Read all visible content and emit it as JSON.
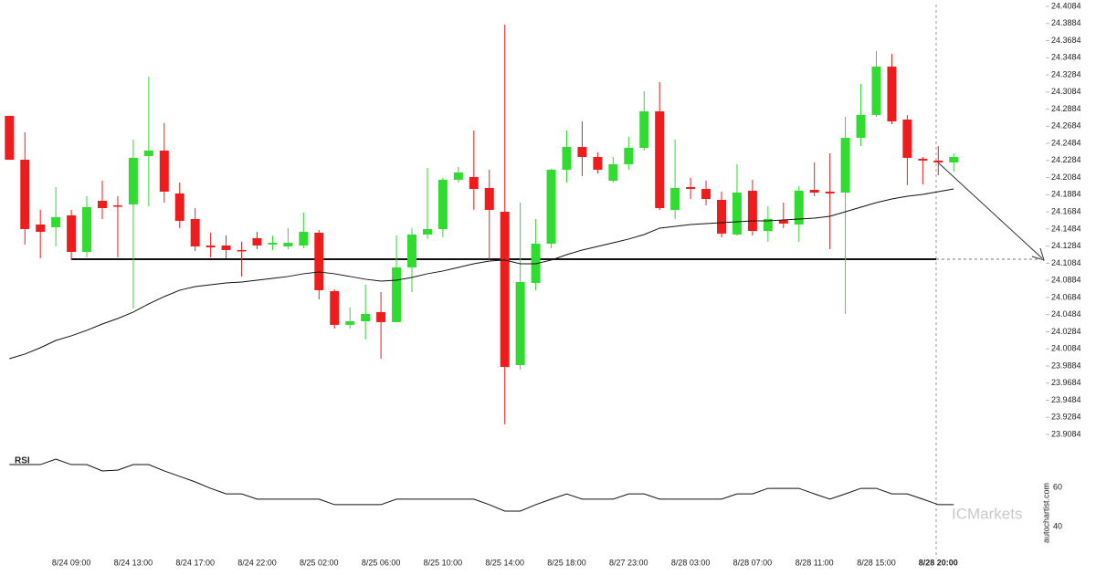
{
  "chart_data": {
    "type": "candlestick",
    "categories": [
      null,
      null,
      null,
      null,
      "8/24 09:00",
      null,
      null,
      null,
      "8/24 13:00",
      null,
      null,
      null,
      "8/24 17:00",
      null,
      null,
      null,
      "8/24 22:00",
      null,
      null,
      null,
      "8/25 02:00",
      null,
      null,
      null,
      "8/25 06:00",
      null,
      null,
      null,
      "8/25 10:00",
      null,
      null,
      null,
      "8/25 14:00",
      null,
      null,
      null,
      "8/25 18:00",
      null,
      null,
      null,
      "8/27 23:00",
      null,
      null,
      null,
      "8/28 03:00",
      null,
      null,
      null,
      "8/28 07:00",
      null,
      null,
      null,
      "8/28 11:00",
      null,
      null,
      null,
      "8/28 15:00",
      null,
      null,
      null,
      "8/28 20:00",
      null
    ],
    "open": [
      24.2805,
      24.2293,
      24.1536,
      24.1504,
      24.1643,
      24.1216,
      24.1813,
      24.176,
      24.1771,
      24.2336,
      24.24,
      24.1899,
      24.16,
      24.1291,
      24.1291,
      24.1238,
      24.1376,
      24.1302,
      24.128,
      24.1291,
      24.144,
      24.0758,
      24.0364,
      24.0406,
      24.0513,
      24.0396,
      24.1035,
      24.1419,
      24.1483,
      24.2059,
      24.2091,
      24.1963,
      24.1685,
      23.9894,
      24.0854,
      24.1312,
      24.2176,
      24.2442,
      24.2325,
      24.2048,
      24.224,
      24.2432,
      24.2858,
      24.1707,
      24.1973,
      24.1952,
      24.1824,
      24.1419,
      24.1931,
      24.1461,
      24.1589,
      24.1536,
      24.1941,
      24.192,
      24.1909,
      24.2549,
      24.2816,
      24.3381,
      24.2762,
      24.2304,
      24.2283,
      24.2261
    ],
    "high": [
      24.2805,
      24.2613,
      24.1707,
      24.1973,
      24.1707,
      24.1867,
      24.2048,
      24.1867,
      24.2528,
      24.3263,
      24.272,
      24.2027,
      24.1728,
      24.144,
      24.1408,
      24.1334,
      24.1451,
      24.1408,
      24.1494,
      24.1675,
      24.1472,
      24.0779,
      24.0566,
      24.0833,
      24.0747,
      24.1408,
      24.1494,
      24.2197,
      24.208,
      24.2208,
      24.2634,
      24.2176,
      24.3871,
      24.1792,
      24.16,
      24.2187,
      24.2634,
      24.2741,
      24.2379,
      24.2325,
      24.256,
      24.3093,
      24.3199,
      24.2528,
      24.208,
      24.2048,
      24.192,
      24.224,
      24.2059,
      24.1749,
      24.1792,
      24.1984,
      24.2261,
      24.2368,
      24.2794,
      24.3178,
      24.3562,
      24.353,
      24.2816,
      24.2325,
      24.2453,
      24.2368
    ],
    "low": [
      24.2293,
      24.1302,
      24.1142,
      24.128,
      24.1121,
      24.1153,
      24.16,
      24.1153,
      24.0556,
      24.1749,
      24.1792,
      24.1494,
      24.1227,
      24.1153,
      24.1142,
      24.0929,
      24.1248,
      24.1238,
      24.1248,
      24.1259,
      24.0662,
      24.0321,
      24.0321,
      24.0193,
      23.9969,
      24.0396,
      24.0747,
      24.1366,
      24.1387,
      24.2027,
      24.1707,
      24.1121,
      23.9202,
      23.9841,
      24.0769,
      24.1259,
      24.2027,
      24.2101,
      24.2133,
      24.2027,
      24.2176,
      24.24,
      24.1707,
      24.16,
      24.1835,
      24.176,
      24.1387,
      24.1408,
      24.1408,
      24.1334,
      24.1494,
      24.1334,
      24.1867,
      24.1248,
      24.0492,
      24.2453,
      24.2794,
      24.2709,
      24.1995,
      24.2005,
      24.2112,
      24.2155
    ],
    "close": [
      24.2293,
      24.1483,
      24.1451,
      24.1622,
      24.1216,
      24.1739,
      24.1728,
      24.175,
      24.2315,
      24.24,
      24.192,
      24.1579,
      24.128,
      24.127,
      24.1238,
      24.1227,
      24.1291,
      24.1323,
      24.1323,
      24.1451,
      24.0769,
      24.0364,
      24.0406,
      24.0492,
      24.0396,
      24.1035,
      24.1419,
      24.1483,
      24.2059,
      24.2144,
      24.1952,
      24.1707,
      23.9873,
      24.0865,
      24.1312,
      24.2176,
      24.2442,
      24.2325,
      24.2176,
      24.224,
      24.2432,
      24.2858,
      24.1728,
      24.1963,
      24.1952,
      24.1835,
      24.143,
      24.1909,
      24.1461,
      24.16,
      24.1547,
      24.1931,
      24.1909,
      24.1899,
      24.2549,
      24.2816,
      24.3381,
      24.2741,
      24.2315,
      24.2283,
      24.2261,
      24.2325
    ],
    "up_color": "#2fdc2f",
    "down_color": "#ee1c1c",
    "moving_average": [
      23.9969,
      24.0023,
      24.0097,
      24.0182,
      24.0236,
      24.03,
      24.0374,
      24.0438,
      24.0513,
      24.0609,
      24.0694,
      24.0769,
      24.0811,
      24.0833,
      24.0854,
      24.0865,
      24.0886,
      24.0907,
      24.0929,
      24.0961,
      24.0982,
      24.0961,
      24.0929,
      24.0897,
      24.0875,
      24.0886,
      24.0918,
      24.0961,
      24.0993,
      24.1035,
      24.1078,
      24.111,
      24.1121,
      24.1078,
      24.1078,
      24.1121,
      24.1184,
      24.1238,
      24.128,
      24.1323,
      24.1366,
      24.1419,
      24.1494,
      24.1515,
      24.1536,
      24.1547,
      24.1558,
      24.1568,
      24.1579,
      24.1579,
      24.159,
      24.16,
      24.1611,
      24.1632,
      24.1685,
      24.1739,
      24.1792,
      24.1835,
      24.1867,
      24.1888,
      24.192,
      24.1952
    ],
    "support_level": 24.1131,
    "ylim": [
      23.9084,
      24.4084
    ],
    "yticks": [
      23.9084,
      23.9284,
      23.9484,
      23.9684,
      23.9884,
      24.0084,
      24.0284,
      24.0484,
      24.0684,
      24.0884,
      24.1084,
      24.1284,
      24.1484,
      24.1684,
      24.1884,
      24.2084,
      24.2284,
      24.2484,
      24.2684,
      24.2884,
      24.3084,
      24.3284,
      24.3484,
      24.3684,
      24.3884,
      24.4084
    ],
    "rsi": {
      "label": "RSI",
      "ylim": [
        25,
        85
      ],
      "yticks": [
        40,
        60
      ],
      "values": [
        71.6,
        71.6,
        71.6,
        74.4,
        71.6,
        71.6,
        68.4,
        68.8,
        71.6,
        71.6,
        68.4,
        65.6,
        62.8,
        59.5,
        56.7,
        56.7,
        54.0,
        54.0,
        54.0,
        54.0,
        54.0,
        51.2,
        51.2,
        51.2,
        51.2,
        54.0,
        54.0,
        54.0,
        54.0,
        54.0,
        54.0,
        51.2,
        47.9,
        47.9,
        51.2,
        54.0,
        56.7,
        54.0,
        54.0,
        54.0,
        56.7,
        56.7,
        54.0,
        54.0,
        54.0,
        54.0,
        54.0,
        56.7,
        56.7,
        59.5,
        59.5,
        59.5,
        56.7,
        54.0,
        56.7,
        59.5,
        59.5,
        56.7,
        56.7,
        54.0,
        51.2,
        51.2
      ]
    },
    "source": "autochartist.com",
    "watermark": "ICMarkets"
  }
}
